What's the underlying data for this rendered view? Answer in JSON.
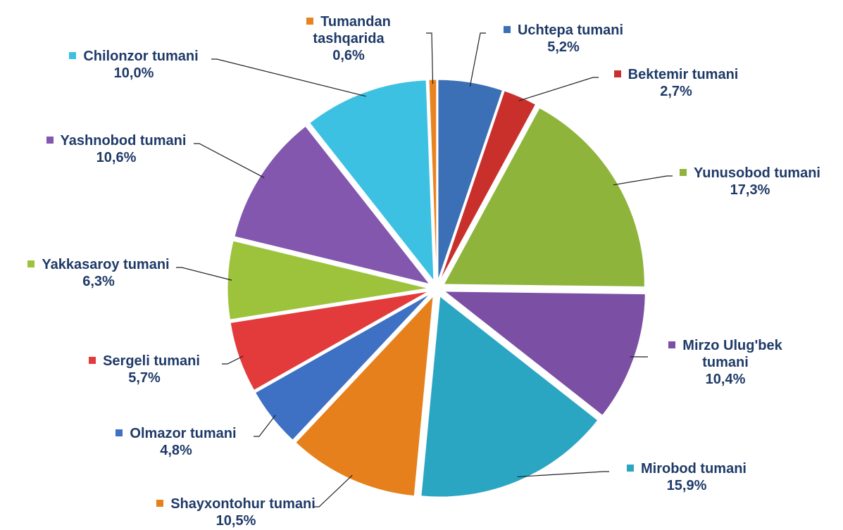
{
  "chart_data": {
    "type": "pie",
    "categories": [
      "Uchtepa tumani",
      "Bektemir tumani",
      "Yunusobod tumani",
      "Mirzo Ulug'bek tumani",
      "Mirobod tumani",
      "Shayxontohur tumani",
      "Olmazor tumani",
      "Sergeli tumani",
      "Yakkasaroy tumani",
      "Yashnobod tumani",
      "Chilonzor tumani",
      "Tumandan tashqarida"
    ],
    "values": [
      5.2,
      2.7,
      17.3,
      10.4,
      15.9,
      10.5,
      4.8,
      5.7,
      6.3,
      10.6,
      10.0,
      0.6
    ],
    "value_labels": [
      "5,2%",
      "2,7%",
      "17,3%",
      "10,4%",
      "15,9%",
      "10,5%",
      "4,8%",
      "5,7%",
      "6,3%",
      "10,6%",
      "10,0%",
      "0,6%"
    ],
    "colors": [
      "#3b6fb6",
      "#c9302c",
      "#8fb43c",
      "#7b4fa3",
      "#2ba6c2",
      "#e5801d",
      "#3e70c4",
      "#e33b3b",
      "#9dc33d",
      "#8357ae",
      "#3dc1e2",
      "#e8831f"
    ]
  }
}
